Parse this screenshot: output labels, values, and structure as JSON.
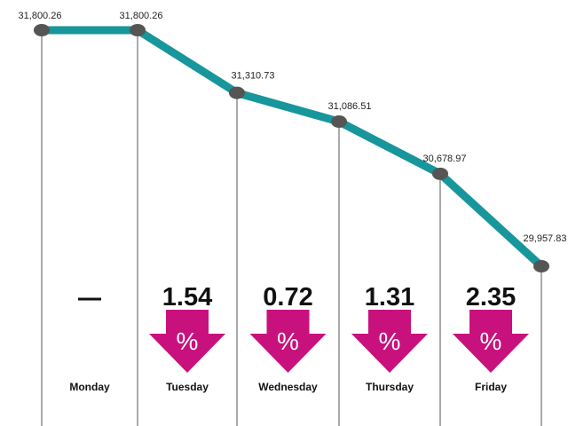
{
  "chart_data": {
    "type": "line",
    "categories": [
      "Monday",
      "Tuesday",
      "Wednesday",
      "Thursday",
      "Friday",
      ""
    ],
    "values": [
      31800.26,
      31800.26,
      31310.73,
      31086.51,
      30678.97,
      29957.83
    ],
    "value_labels": [
      "31,800.26",
      "31,800.26",
      "31,310.73",
      "31,086.51",
      "30,678.97",
      "29,957.83"
    ],
    "changes": [
      {
        "day": "Monday",
        "value": "—",
        "direction": "none"
      },
      {
        "day": "Tuesday",
        "value": "1.54",
        "direction": "down"
      },
      {
        "day": "Wednesday",
        "value": "0.72",
        "direction": "down"
      },
      {
        "day": "Thursday",
        "value": "1.31",
        "direction": "down"
      },
      {
        "day": "Friday",
        "value": "2.35",
        "direction": "down"
      }
    ],
    "percent_symbol": "%",
    "title": "",
    "xlabel": "",
    "ylabel": "",
    "grid": false,
    "legend": "none"
  },
  "colors": {
    "line": "#17969c",
    "marker": "#555555",
    "arrow": "#c8117c",
    "divider": "#555555"
  }
}
